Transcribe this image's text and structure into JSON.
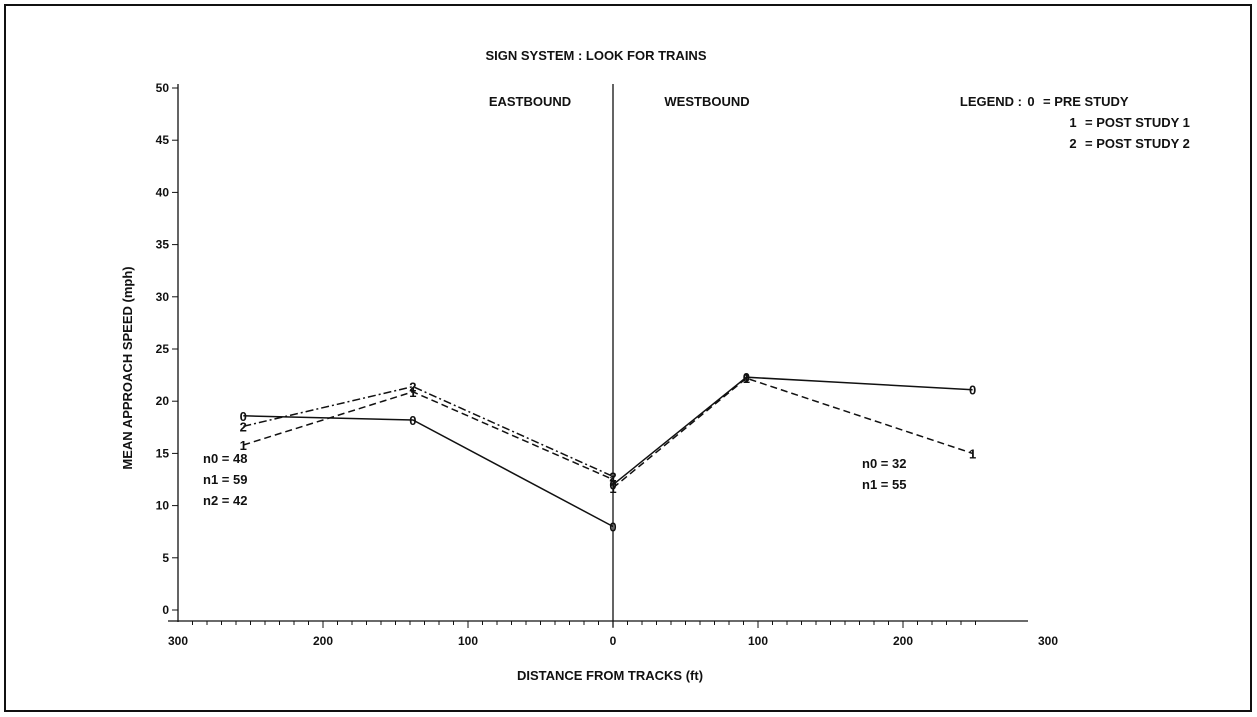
{
  "chart_data": {
    "type": "line",
    "title": "SIGN SYSTEM : LOOK FOR TRAINS",
    "xlabel": "DISTANCE FROM TRACKS (ft)",
    "ylabel": "MEAN APPROACH SPEED (mph)",
    "ylim": [
      0,
      50
    ],
    "y_ticks": [
      0,
      5,
      10,
      15,
      20,
      25,
      30,
      35,
      40,
      45,
      50
    ],
    "x_tick_labels": [
      {
        "label": "300",
        "x": -300
      },
      {
        "label": "200",
        "x": -200
      },
      {
        "label": "100",
        "x": -100
      },
      {
        "label": "0",
        "x": 0
      },
      {
        "label": "100",
        "x": 100
      },
      {
        "label": "200",
        "x": 200
      },
      {
        "label": "300",
        "x": 300
      }
    ],
    "xlim": [
      -300,
      300
    ],
    "sides": {
      "left": "EASTBOUND",
      "right": "WESTBOUND"
    },
    "legend": {
      "position": "top-right",
      "header": "LEGEND :",
      "entries": [
        {
          "marker": "0",
          "text": "= PRE STUDY"
        },
        {
          "marker": "1",
          "text": "= POST STUDY 1"
        },
        {
          "marker": "2",
          "text": "= POST STUDY 2"
        }
      ]
    },
    "series": [
      {
        "marker": "0",
        "style": "solid",
        "segments": [
          [
            [
              -255,
              18.6
            ],
            [
              -138,
              18.2
            ],
            [
              0,
              8.0
            ]
          ],
          [
            [
              0,
              12.0
            ],
            [
              92,
              22.3
            ],
            [
              248,
              21.1
            ]
          ]
        ]
      },
      {
        "marker": "1",
        "style": "dashed",
        "segments": [
          [
            [
              -255,
              15.8
            ],
            [
              -138,
              20.9
            ],
            [
              0,
              12.5
            ]
          ],
          [
            [
              0,
              11.7
            ],
            [
              92,
              22.2
            ],
            [
              248,
              15.0
            ]
          ]
        ]
      },
      {
        "marker": "2",
        "style": "dashdot",
        "segments": [
          [
            [
              -255,
              17.6
            ],
            [
              -138,
              21.4
            ],
            [
              0,
              12.8
            ]
          ]
        ]
      }
    ],
    "annotations": {
      "eastbound_counts": [
        "n0 = 48",
        "n1 = 59",
        "n2 = 42"
      ],
      "westbound_counts": [
        "n0 = 32",
        "n1 = 55"
      ]
    }
  }
}
